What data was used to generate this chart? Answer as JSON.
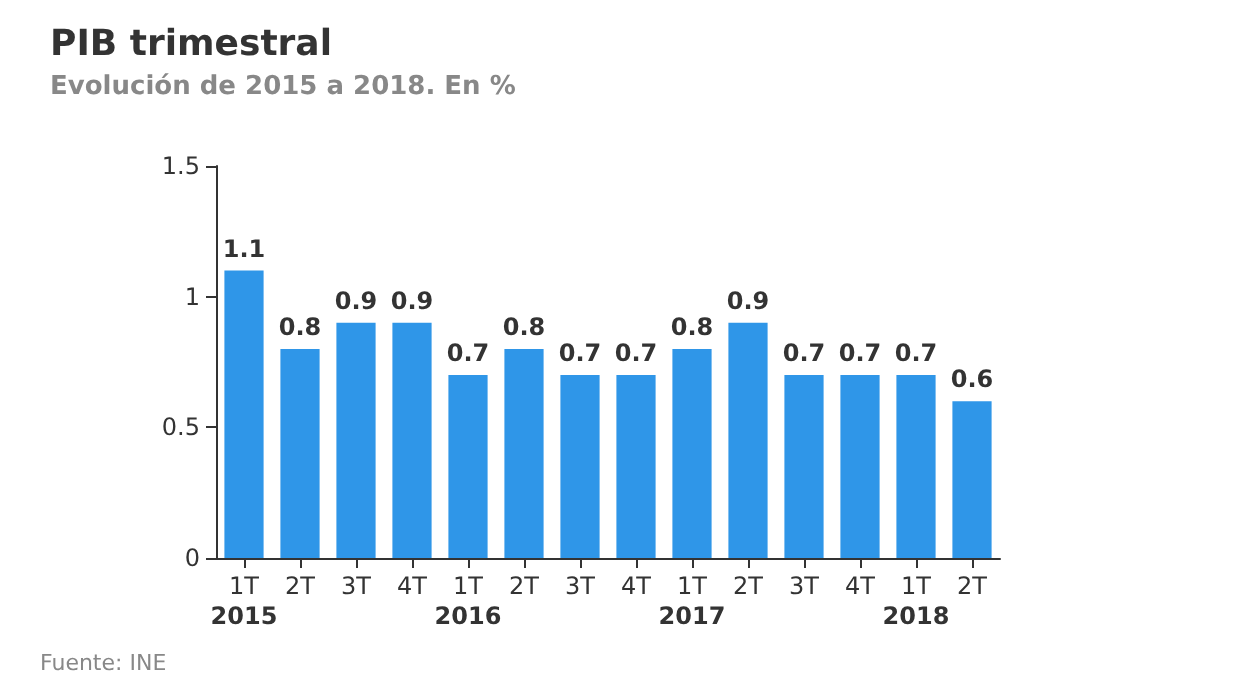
{
  "chart_data": {
    "type": "bar",
    "title": "PIB trimestral",
    "subtitle": "Evolución de 2015 a 2018. En %",
    "categories": [
      "1T",
      "2T",
      "3T",
      "4T",
      "1T",
      "2T",
      "3T",
      "4T",
      "1T",
      "2T",
      "3T",
      "4T",
      "1T",
      "2T"
    ],
    "values": [
      1.1,
      0.8,
      0.9,
      0.9,
      0.7,
      0.8,
      0.7,
      0.7,
      0.8,
      0.9,
      0.7,
      0.7,
      0.7,
      0.6
    ],
    "color": "#2f96e8",
    "ylim": [
      0,
      1.5
    ],
    "yticks": [
      0,
      0.5,
      1,
      1.5
    ],
    "grid": false,
    "data_labels": true,
    "annotations": [
      "2015",
      "2016",
      "2017",
      "2018",
      "Fuente: INE"
    ]
  }
}
